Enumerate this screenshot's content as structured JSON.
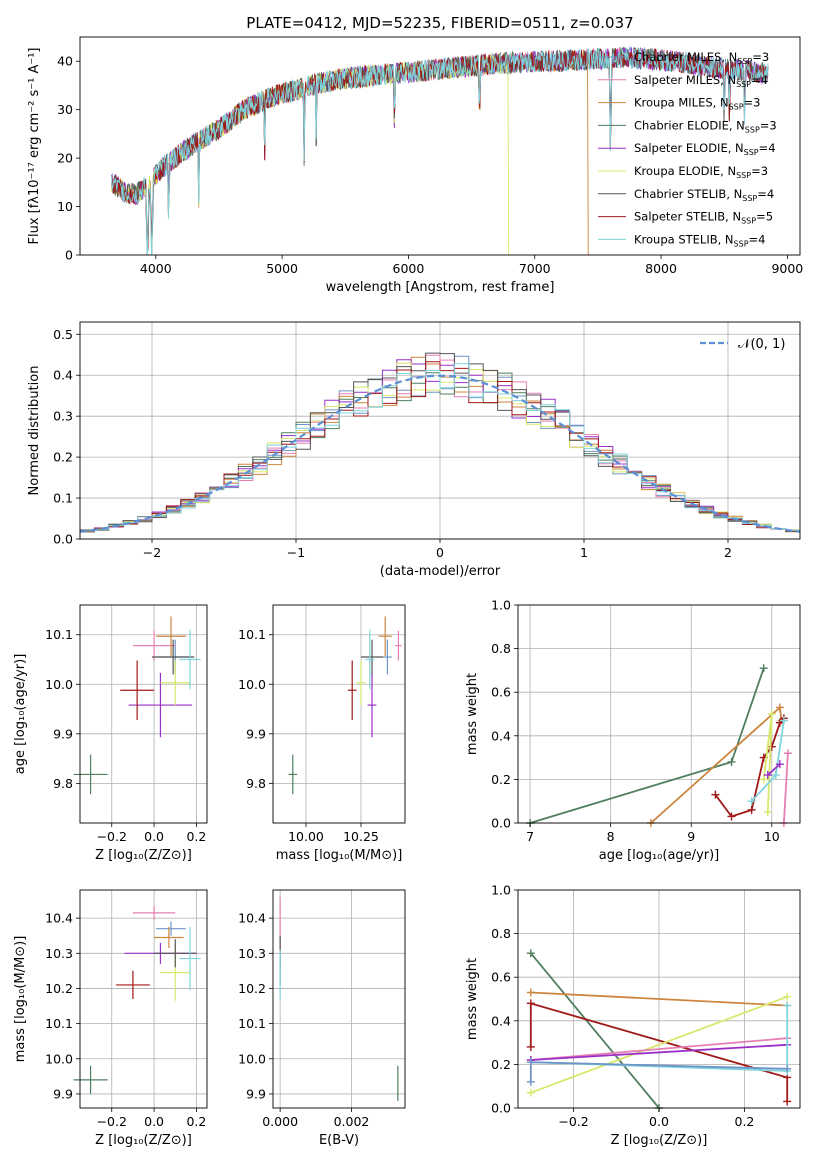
{
  "figure": {
    "title": "PLATE=0412, MJD=52235, FIBERID=0511, z=0.037"
  },
  "colors": {
    "Chabrier MILES": "#6f95c8",
    "Salpeter MILES": "#e67fb2",
    "Kroupa MILES": "#cd853f",
    "Chabrier ELODIE": "#4f7f5f",
    "Salpeter ELODIE": "#9b30c8",
    "Kroupa ELODIE": "#d8e86a",
    "Chabrier STELIB": "#555555",
    "Salpeter STELIB": "#a01818",
    "Kroupa STELIB": "#7fd4de",
    "gauss": "#5b8fd6"
  },
  "chart_data": [
    {
      "type": "line",
      "id": "spectrum",
      "title": "PLATE=0412, MJD=52235, FIBERID=0511, z=0.037",
      "xlabel": "wavelength [Angstrom, rest frame]",
      "ylabel": "Flux [fλ10⁻¹⁷ erg cm⁻² s⁻¹ A⁻¹]",
      "xlim": [
        3400,
        9100
      ],
      "ylim": [
        0,
        45
      ],
      "xticks": [
        4000,
        5000,
        6000,
        7000,
        8000,
        9000
      ],
      "yticks": [
        0,
        10,
        20,
        30,
        40
      ],
      "legend_position": "top-right",
      "continuum_x": [
        3650,
        3750,
        3850,
        3950,
        4050,
        4150,
        4300,
        4500,
        4700,
        4900,
        5100,
        5300,
        5500,
        5700,
        5900,
        6100,
        6300,
        6500,
        6700,
        6900,
        7100,
        7300,
        7500,
        7700,
        7900,
        8100,
        8300,
        8500,
        8700,
        8800
      ],
      "continuum_y": [
        15,
        13,
        12.5,
        15,
        18,
        20,
        23,
        26,
        30,
        32.5,
        34,
        35.5,
        36.5,
        37,
        37.5,
        38,
        38.5,
        39,
        39.5,
        39.8,
        40,
        40.2,
        40.5,
        40.8,
        40.5,
        40,
        39.2,
        38.5,
        38,
        37.5
      ],
      "series": [
        {
          "name": "Chabrier MILES, N_SSP=3",
          "legend_text": "Chabrier MILES, N",
          "n": "=3"
        },
        {
          "name": "Salpeter MILES, N_SSP=4",
          "legend_text": "Salpeter MILES, N",
          "n": "=4"
        },
        {
          "name": "Kroupa MILES, N_SSP=3",
          "legend_text": "Kroupa MILES, N",
          "n": "=3"
        },
        {
          "name": "Chabrier ELODIE, N_SSP=3",
          "legend_text": "Chabrier ELODIE, N",
          "n": "=3"
        },
        {
          "name": "Salpeter ELODIE, N_SSP=4",
          "legend_text": "Salpeter ELODIE, N",
          "n": "=4"
        },
        {
          "name": "Kroupa ELODIE, N_SSP=3",
          "legend_text": "Kroupa ELODIE, N",
          "n": "=3"
        },
        {
          "name": "Chabrier STELIB, N_SSP=4",
          "legend_text": "Chabrier STELIB, N",
          "n": "=4"
        },
        {
          "name": "Salpeter STELIB, N_SSP=5",
          "legend_text": "Salpeter STELIB, N",
          "n": "=5"
        },
        {
          "name": "Kroupa STELIB, N_SSP=4",
          "legend_text": "Kroupa STELIB, N",
          "n": "=4"
        }
      ],
      "legend_subscript": "SSP",
      "drops": [
        {
          "series": "Kroupa ELODIE",
          "x": 6790
        },
        {
          "series": "Kroupa MILES",
          "x": 7420
        }
      ]
    },
    {
      "type": "histogram",
      "id": "residuals",
      "xlabel": "(data-model)/error",
      "ylabel": "Normed distribution",
      "xlim": [
        -2.5,
        2.5
      ],
      "ylim": [
        0,
        0.53
      ],
      "xticks": [
        -2,
        -1,
        0,
        1,
        2
      ],
      "xtick_labels": [
        "−2",
        "−1",
        "0",
        "1",
        "2"
      ],
      "yticks": [
        0.0,
        0.1,
        0.2,
        0.3,
        0.4,
        0.5
      ],
      "bin_width": 0.1,
      "bin_start": -2.5,
      "gaussian_label": "𝒩(0, 1)",
      "legend_position": "top-right"
    },
    {
      "type": "scatter",
      "id": "age-vs-Z",
      "xlabel": "Z [log₁₀(Z/Z⊙)]",
      "ylabel": "age  [log₁₀(age/yr)]",
      "xlim": [
        -0.35,
        0.25
      ],
      "ylim": [
        9.72,
        10.16
      ],
      "xticks": [
        -0.2,
        0.0,
        0.2
      ],
      "xtick_labels": [
        "−0.2",
        "0.0",
        "0.2"
      ],
      "yticks": [
        9.8,
        9.9,
        10.0,
        10.1
      ],
      "points": [
        {
          "series": "Chabrier MILES",
          "x": 0.1,
          "y": 10.055,
          "xerr": 0.08,
          "yerr": 0.035
        },
        {
          "series": "Salpeter MILES",
          "x": 0.0,
          "y": 10.078,
          "xerr": 0.1,
          "yerr": 0.03
        },
        {
          "series": "Kroupa MILES",
          "x": 0.08,
          "y": 10.097,
          "xerr": 0.07,
          "yerr": 0.04
        },
        {
          "series": "Chabrier ELODIE",
          "x": -0.3,
          "y": 9.818,
          "xerr": 0.08,
          "yerr": 0.04
        },
        {
          "series": "Salpeter ELODIE",
          "x": 0.03,
          "y": 9.958,
          "xerr": 0.15,
          "yerr": 0.065
        },
        {
          "series": "Kroupa ELODIE",
          "x": 0.1,
          "y": 10.003,
          "xerr": 0.07,
          "yerr": 0.045
        },
        {
          "series": "Chabrier STELIB",
          "x": 0.09,
          "y": 10.055,
          "xerr": 0.1,
          "yerr": 0.035
        },
        {
          "series": "Salpeter STELIB",
          "x": -0.08,
          "y": 9.988,
          "xerr": 0.08,
          "yerr": 0.06
        },
        {
          "series": "Kroupa STELIB",
          "x": 0.17,
          "y": 10.05,
          "xerr": 0.05,
          "yerr": 0.06
        }
      ]
    },
    {
      "type": "scatter",
      "id": "age-vs-mass",
      "xlabel": "mass [log₁₀(M/M⊙)]",
      "ylabel": "",
      "xlim": [
        9.85,
        10.45
      ],
      "ylim": [
        9.72,
        10.16
      ],
      "xticks": [
        10.0,
        10.25
      ],
      "xtick_labels": [
        "10.00",
        "10.25"
      ],
      "yticks": [
        9.8,
        9.9,
        10.0,
        10.1
      ],
      "points": [
        {
          "series": "Chabrier MILES",
          "x": 10.37,
          "y": 10.055,
          "xerr": 0.02,
          "yerr": 0.035
        },
        {
          "series": "Salpeter MILES",
          "x": 10.42,
          "y": 10.078,
          "xerr": 0.015,
          "yerr": 0.03
        },
        {
          "series": "Kroupa MILES",
          "x": 10.36,
          "y": 10.097,
          "xerr": 0.03,
          "yerr": 0.04
        },
        {
          "series": "Chabrier ELODIE",
          "x": 9.94,
          "y": 9.818,
          "xerr": 0.02,
          "yerr": 0.04
        },
        {
          "series": "Salpeter ELODIE",
          "x": 10.3,
          "y": 9.958,
          "xerr": 0.02,
          "yerr": 0.065
        },
        {
          "series": "Kroupa ELODIE",
          "x": 10.25,
          "y": 10.003,
          "xerr": 0.02,
          "yerr": 0.045
        },
        {
          "series": "Chabrier STELIB",
          "x": 10.3,
          "y": 10.055,
          "xerr": 0.05,
          "yerr": 0.035
        },
        {
          "series": "Salpeter STELIB",
          "x": 10.21,
          "y": 9.988,
          "xerr": 0.02,
          "yerr": 0.06
        },
        {
          "series": "Kroupa STELIB",
          "x": 10.29,
          "y": 10.05,
          "xerr": 0.02,
          "yerr": 0.06
        }
      ]
    },
    {
      "type": "line",
      "id": "mass-weight-vs-age",
      "xlabel": "age  [log₁₀(age/yr)]",
      "ylabel": "mass weight",
      "xlim": [
        6.85,
        10.35
      ],
      "ylim": [
        0,
        1.0
      ],
      "xticks": [
        7,
        8,
        9,
        10
      ],
      "yticks": [
        0.0,
        0.2,
        0.4,
        0.6,
        0.8,
        1.0
      ],
      "series": [
        {
          "name": "Chabrier ELODIE",
          "x": [
            7.0,
            9.5,
            9.9
          ],
          "y": [
            0.0,
            0.28,
            0.71
          ]
        },
        {
          "name": "Kroupa MILES",
          "x": [
            8.5,
            10.1,
            10.12
          ],
          "y": [
            0.0,
            0.53,
            0.47
          ]
        },
        {
          "name": "Salpeter STELIB",
          "x": [
            9.3,
            9.5,
            9.75,
            9.9,
            10.0,
            10.1,
            10.15
          ],
          "y": [
            0.13,
            0.03,
            0.06,
            0.3,
            0.35,
            0.46,
            0.48
          ]
        },
        {
          "name": "Kroupa ELODIE",
          "x": [
            9.95,
            10.0,
            9.9
          ],
          "y": [
            0.05,
            0.5,
            0.2
          ]
        },
        {
          "name": "Kroupa STELIB",
          "x": [
            9.75,
            10.05,
            10.15
          ],
          "y": [
            0.1,
            0.22,
            0.47
          ]
        },
        {
          "name": "Salpeter MILES",
          "x": [
            10.15,
            10.2
          ],
          "y": [
            0.0,
            0.32
          ]
        },
        {
          "name": "Salpeter ELODIE",
          "x": [
            9.95,
            10.1
          ],
          "y": [
            0.22,
            0.27
          ]
        }
      ]
    },
    {
      "type": "scatter",
      "id": "mass-vs-Z",
      "xlabel": "Z [log₁₀(Z/Z⊙)]",
      "ylabel": "mass [log₁₀(M/M⊙)]",
      "xlim": [
        -0.35,
        0.25
      ],
      "ylim": [
        9.86,
        10.48
      ],
      "xticks": [
        -0.2,
        0.0,
        0.2
      ],
      "xtick_labels": [
        "−0.2",
        "0.0",
        "0.2"
      ],
      "yticks": [
        9.9,
        10.0,
        10.1,
        10.2,
        10.3,
        10.4
      ],
      "ytick_labels": [
        "9.9",
        "10.0",
        "10.1",
        "10.2",
        "10.3",
        "10.4"
      ],
      "points": [
        {
          "series": "Chabrier MILES",
          "x": 0.08,
          "y": 10.37,
          "xerr": 0.07,
          "yerr": 0.02
        },
        {
          "series": "Salpeter MILES",
          "x": 0.0,
          "y": 10.415,
          "xerr": 0.1,
          "yerr": 0.02
        },
        {
          "series": "Kroupa MILES",
          "x": 0.07,
          "y": 10.345,
          "xerr": 0.07,
          "yerr": 0.03
        },
        {
          "series": "Chabrier ELODIE",
          "x": -0.3,
          "y": 9.94,
          "xerr": 0.08,
          "yerr": 0.04
        },
        {
          "series": "Salpeter ELODIE",
          "x": 0.03,
          "y": 10.3,
          "xerr": 0.17,
          "yerr": 0.03
        },
        {
          "series": "Kroupa ELODIE",
          "x": 0.1,
          "y": 10.245,
          "xerr": 0.07,
          "yerr": 0.08
        },
        {
          "series": "Chabrier STELIB",
          "x": 0.1,
          "y": 10.3,
          "xerr": 0.1,
          "yerr": 0.04
        },
        {
          "series": "Salpeter STELIB",
          "x": -0.1,
          "y": 10.21,
          "xerr": 0.08,
          "yerr": 0.04
        },
        {
          "series": "Kroupa STELIB",
          "x": 0.17,
          "y": 10.285,
          "xerr": 0.05,
          "yerr": 0.09
        }
      ]
    },
    {
      "type": "scatter",
      "id": "mass-vs-EBV",
      "xlabel": "E(B-V)",
      "ylabel": "",
      "xlim": [
        -0.0002,
        0.0035
      ],
      "ylim": [
        9.86,
        10.48
      ],
      "xticks": [
        0.0,
        0.002
      ],
      "xtick_labels": [
        "0.000",
        "0.002"
      ],
      "yticks": [
        9.9,
        10.0,
        10.1,
        10.2,
        10.3,
        10.4
      ],
      "ytick_labels": [
        "9.9",
        "10.0",
        "10.1",
        "10.2",
        "10.3",
        "10.4"
      ],
      "points": [
        {
          "series": "Salpeter MILES",
          "x": 0.0,
          "y": 10.36,
          "xerr": 0.0,
          "yerr": 0.1
        },
        {
          "series": "Chabrier STELIB",
          "x": 0.0,
          "y": 10.28,
          "xerr": 0.0,
          "yerr": 0.07
        },
        {
          "series": "Kroupa STELIB",
          "x": 0.0,
          "y": 10.24,
          "xerr": 0.0,
          "yerr": 0.07
        },
        {
          "series": "Chabrier ELODIE",
          "x": 0.0033,
          "y": 9.93,
          "xerr": 0.0,
          "yerr": 0.05
        }
      ]
    },
    {
      "type": "line",
      "id": "mass-weight-vs-Z",
      "xlabel": "Z [log₁₀(Z/Z⊙)]",
      "ylabel": "mass weight",
      "xlim": [
        -0.33,
        0.33
      ],
      "ylim": [
        0,
        1.0
      ],
      "xticks": [
        -0.2,
        0.0,
        0.2
      ],
      "xtick_labels": [
        "−0.2",
        "0.0",
        "0.2"
      ],
      "yticks": [
        0.0,
        0.2,
        0.4,
        0.6,
        0.8,
        1.0
      ],
      "series": [
        {
          "name": "Chabrier ELODIE",
          "x": [
            -0.3,
            0.0
          ],
          "y": [
            0.71,
            0.0
          ]
        },
        {
          "name": "Kroupa MILES",
          "x": [
            -0.3,
            0.3
          ],
          "y": [
            0.53,
            0.47
          ]
        },
        {
          "name": "Salpeter STELIB",
          "x": [
            -0.3,
            -0.3,
            0.3,
            0.3
          ],
          "y": [
            0.28,
            0.48,
            0.14,
            0.03
          ]
        },
        {
          "name": "Kroupa ELODIE",
          "x": [
            -0.3,
            0.3
          ],
          "y": [
            0.07,
            0.51
          ]
        },
        {
          "name": "Salpeter MILES",
          "x": [
            -0.3,
            0.3
          ],
          "y": [
            0.22,
            0.32
          ]
        },
        {
          "name": "Salpeter ELODIE",
          "x": [
            -0.3,
            0.3
          ],
          "y": [
            0.22,
            0.29
          ]
        },
        {
          "name": "Kroupa STELIB",
          "x": [
            -0.3,
            0.3,
            0.3
          ],
          "y": [
            0.21,
            0.17,
            0.47
          ]
        },
        {
          "name": "Chabrier MILES",
          "x": [
            -0.3,
            -0.3,
            0.3
          ],
          "y": [
            0.12,
            0.21,
            0.18
          ]
        }
      ]
    }
  ]
}
